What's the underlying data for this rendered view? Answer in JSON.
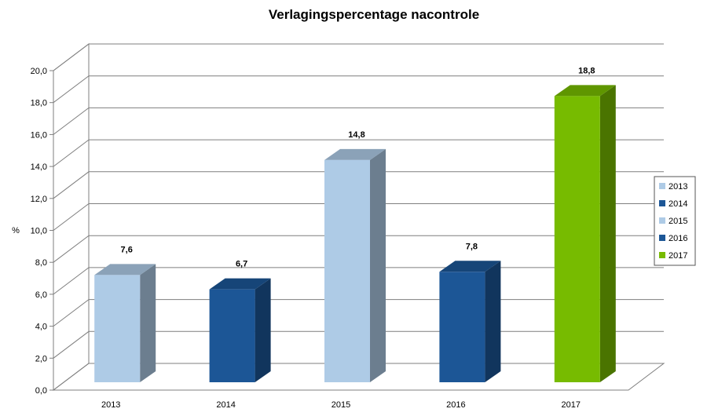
{
  "chart_data": {
    "type": "bar",
    "title": "Verlagingspercentage nacontrole",
    "ylabel": "%",
    "xlabel": "",
    "categories": [
      "2013",
      "2014",
      "2015",
      "2016",
      "2017"
    ],
    "values": [
      7.6,
      6.7,
      14.8,
      7.8,
      18.8
    ],
    "data_labels": [
      "7,6",
      "6,7",
      "14,8",
      "7,8",
      "18,8"
    ],
    "ylim": [
      0,
      20
    ],
    "yticks": [
      "0,0",
      "2,0",
      "4,0",
      "6,0",
      "8,0",
      "10,0",
      "12,0",
      "14,0",
      "16,0",
      "18,0",
      "20,0"
    ],
    "grid": true,
    "legend": {
      "position": "right",
      "entries": [
        "2013",
        "2014",
        "2015",
        "2016",
        "2017"
      ]
    },
    "colors": [
      "#aecbe6",
      "#1c5696",
      "#aecbe6",
      "#1c5696",
      "#77bb00"
    ],
    "three_d": true
  }
}
